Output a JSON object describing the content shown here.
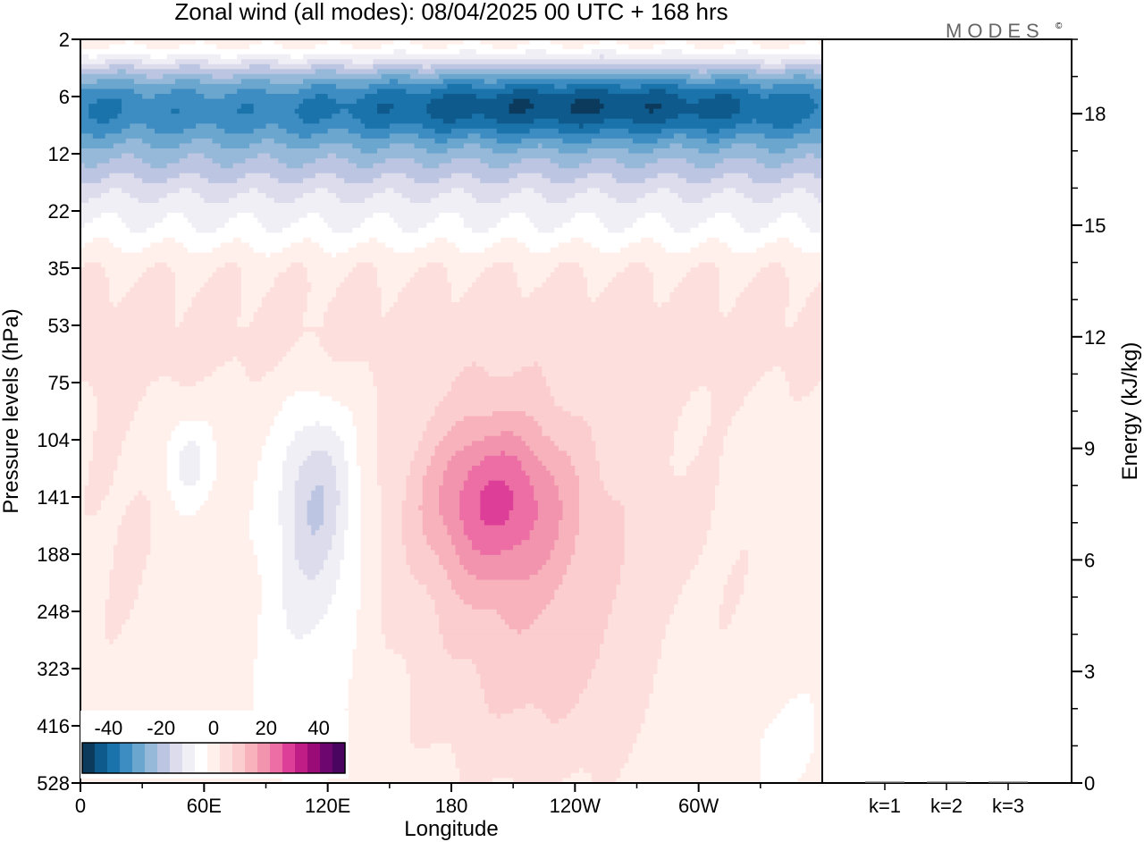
{
  "chart_data": [
    {
      "type": "heatmap",
      "title": "Zonal wind (all modes):  08/04/2025  00 UTC  + 168 hrs",
      "xlabel": "Longitude",
      "ylabel": "Pressure levels (hPa)",
      "x_tick_labels": [
        "0",
        "60E",
        "120E",
        "180",
        "120W",
        "60W"
      ],
      "x_tick_degrees": [
        0,
        60,
        120,
        180,
        240,
        300
      ],
      "xlim_degrees": [
        0,
        360
      ],
      "y_tick_labels": [
        "2",
        "6",
        "12",
        "22",
        "35",
        "53",
        "75",
        "104",
        "141",
        "188",
        "248",
        "323",
        "416",
        "528"
      ],
      "colorbar": {
        "tick_labels": [
          "-40",
          "-20",
          "0",
          "20",
          "40"
        ],
        "range": [
          -50,
          50
        ],
        "step": 5,
        "colors": [
          "#0b3a5c",
          "#0e5a8c",
          "#1a73aa",
          "#3d8dc2",
          "#6aa6ce",
          "#97b9d9",
          "#bcc5e1",
          "#dcdced",
          "#f1eff6",
          "#ffffff",
          "#fff0ec",
          "#fde0de",
          "#fbcdce",
          "#f7b2bc",
          "#f294ae",
          "#ec6ea4",
          "#dd3f98",
          "#c01e86",
          "#9a0b78",
          "#6e0670",
          "#4a0560"
        ]
      },
      "features": [
        {
          "label": "stratospheric easterly jet core",
          "lon": [
            195,
            345
          ],
          "level_index": 1.0,
          "value": -45
        },
        {
          "label": "upper easterly band",
          "lon": [
            0,
            360
          ],
          "level_index": 1.5,
          "value": -30
        },
        {
          "label": "westerly maximum",
          "lon": [
            200
          ],
          "level_index": 8.0,
          "value": 20
        },
        {
          "label": "weak easterly cell",
          "lon": [
            115
          ],
          "level_index": 8.0,
          "value": -15
        },
        {
          "label": "weak easterly cell",
          "lon": [
            52
          ],
          "level_index": 7.4,
          "value": -10
        }
      ]
    },
    {
      "type": "bar",
      "categories": [
        "k=1",
        "k=2",
        "k=3"
      ],
      "values": [
        0.02,
        0.02,
        0.02
      ],
      "ylabel": "Energy (kJ/kg)",
      "ylim": [
        0,
        20
      ],
      "y_ticks": [
        0,
        3,
        6,
        9,
        12,
        15,
        18
      ]
    }
  ],
  "logo": {
    "text": "MODES",
    "mark": "©"
  }
}
